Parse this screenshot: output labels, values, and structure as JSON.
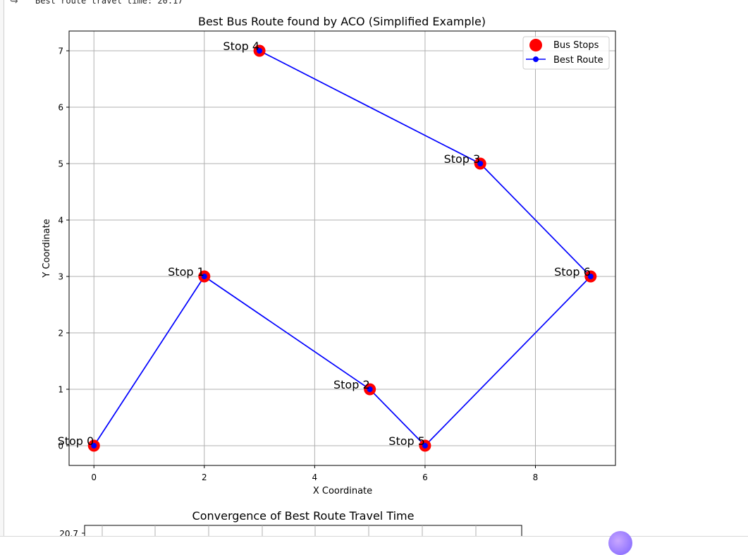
{
  "output": {
    "icon": "output-arrow-icon",
    "stdout_text": "Best route travel time: 20.17"
  },
  "chart_data": [
    {
      "type": "scatter",
      "title": "Best Bus Route found by ACO (Simplified Example)",
      "xlabel": "X Coordinate",
      "ylabel": "Y Coordinate",
      "xlim": [
        -0.45,
        9.45
      ],
      "ylim": [
        -0.35,
        7.35
      ],
      "xticks": [
        0,
        2,
        4,
        6,
        8
      ],
      "yticks": [
        0,
        1,
        2,
        3,
        4,
        5,
        6,
        7
      ],
      "grid": true,
      "legend": {
        "placement": "top-right",
        "entries": [
          "Bus Stops",
          "Best Route"
        ]
      },
      "stops": [
        {
          "label": "Stop 0",
          "x": 0,
          "y": 0
        },
        {
          "label": "Stop 1",
          "x": 2,
          "y": 3
        },
        {
          "label": "Stop 2",
          "x": 5,
          "y": 1
        },
        {
          "label": "Stop 3",
          "x": 7,
          "y": 5
        },
        {
          "label": "Stop 4",
          "x": 3,
          "y": 7
        },
        {
          "label": "Stop 5",
          "x": 6,
          "y": 0
        },
        {
          "label": "Stop 6",
          "x": 9,
          "y": 3
        }
      ],
      "route_order": [
        0,
        1,
        2,
        5,
        6,
        3,
        4
      ],
      "series": [
        {
          "name": "Bus Stops",
          "color": "#ff0000",
          "marker": "circle"
        },
        {
          "name": "Best Route",
          "color": "#0000ff",
          "marker": "circle-line"
        }
      ]
    },
    {
      "type": "line",
      "title": "Convergence of Best Route Travel Time",
      "ytick_visible": "20.7"
    }
  ]
}
